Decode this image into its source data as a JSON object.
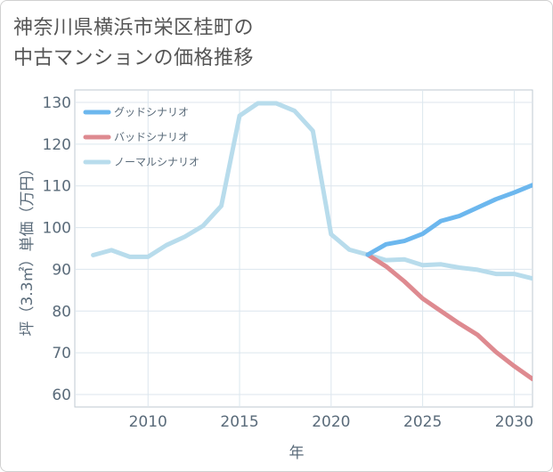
{
  "title_lines": [
    "神奈川県横浜市栄区桂町の",
    "中古マンションの価格推移"
  ],
  "chart_data": {
    "type": "line",
    "title": "神奈川県横浜市栄区桂町の中古マンションの価格推移",
    "xlabel": "年",
    "ylabel": "坪（3.3㎡）単価（万円）",
    "xlim": [
      2006,
      2031
    ],
    "ylim": [
      57,
      133
    ],
    "xticks": [
      2010,
      2015,
      2020,
      2025,
      2030
    ],
    "yticks": [
      60,
      70,
      80,
      90,
      100,
      110,
      120,
      130
    ],
    "grid": true,
    "legend_position": "top-left",
    "series": [
      {
        "name": "グッドシナリオ",
        "color": "#6cb7ee",
        "x": [
          2022,
          2023,
          2024,
          2025,
          2026,
          2027,
          2028,
          2029,
          2030,
          2031
        ],
        "y": [
          93.5,
          96.0,
          96.8,
          98.5,
          101.6,
          102.8,
          104.8,
          106.8,
          108.4,
          110.2
        ]
      },
      {
        "name": "バッドシナリオ",
        "color": "#de8a90",
        "x": [
          2022,
          2023,
          2024,
          2025,
          2026,
          2027,
          2028,
          2029,
          2030,
          2031
        ],
        "y": [
          93.5,
          90.7,
          87.1,
          83.0,
          80.0,
          77.0,
          74.3,
          70.2,
          66.8,
          63.7
        ]
      },
      {
        "name": "ノーマルシナリオ",
        "color": "#b8dcec",
        "x": [
          2007,
          2008,
          2009,
          2010,
          2011,
          2012,
          2013,
          2014,
          2015,
          2016,
          2017,
          2018,
          2019,
          2020,
          2021,
          2022,
          2023,
          2024,
          2025,
          2026,
          2027,
          2028,
          2029,
          2030,
          2031
        ],
        "y": [
          93.4,
          94.6,
          93.0,
          93.0,
          95.8,
          97.8,
          100.4,
          105.2,
          126.8,
          129.8,
          129.8,
          128.0,
          123.2,
          98.4,
          94.7,
          93.5,
          92.2,
          92.4,
          91.0,
          91.2,
          90.4,
          89.9,
          88.9,
          88.9,
          87.8
        ]
      }
    ]
  }
}
